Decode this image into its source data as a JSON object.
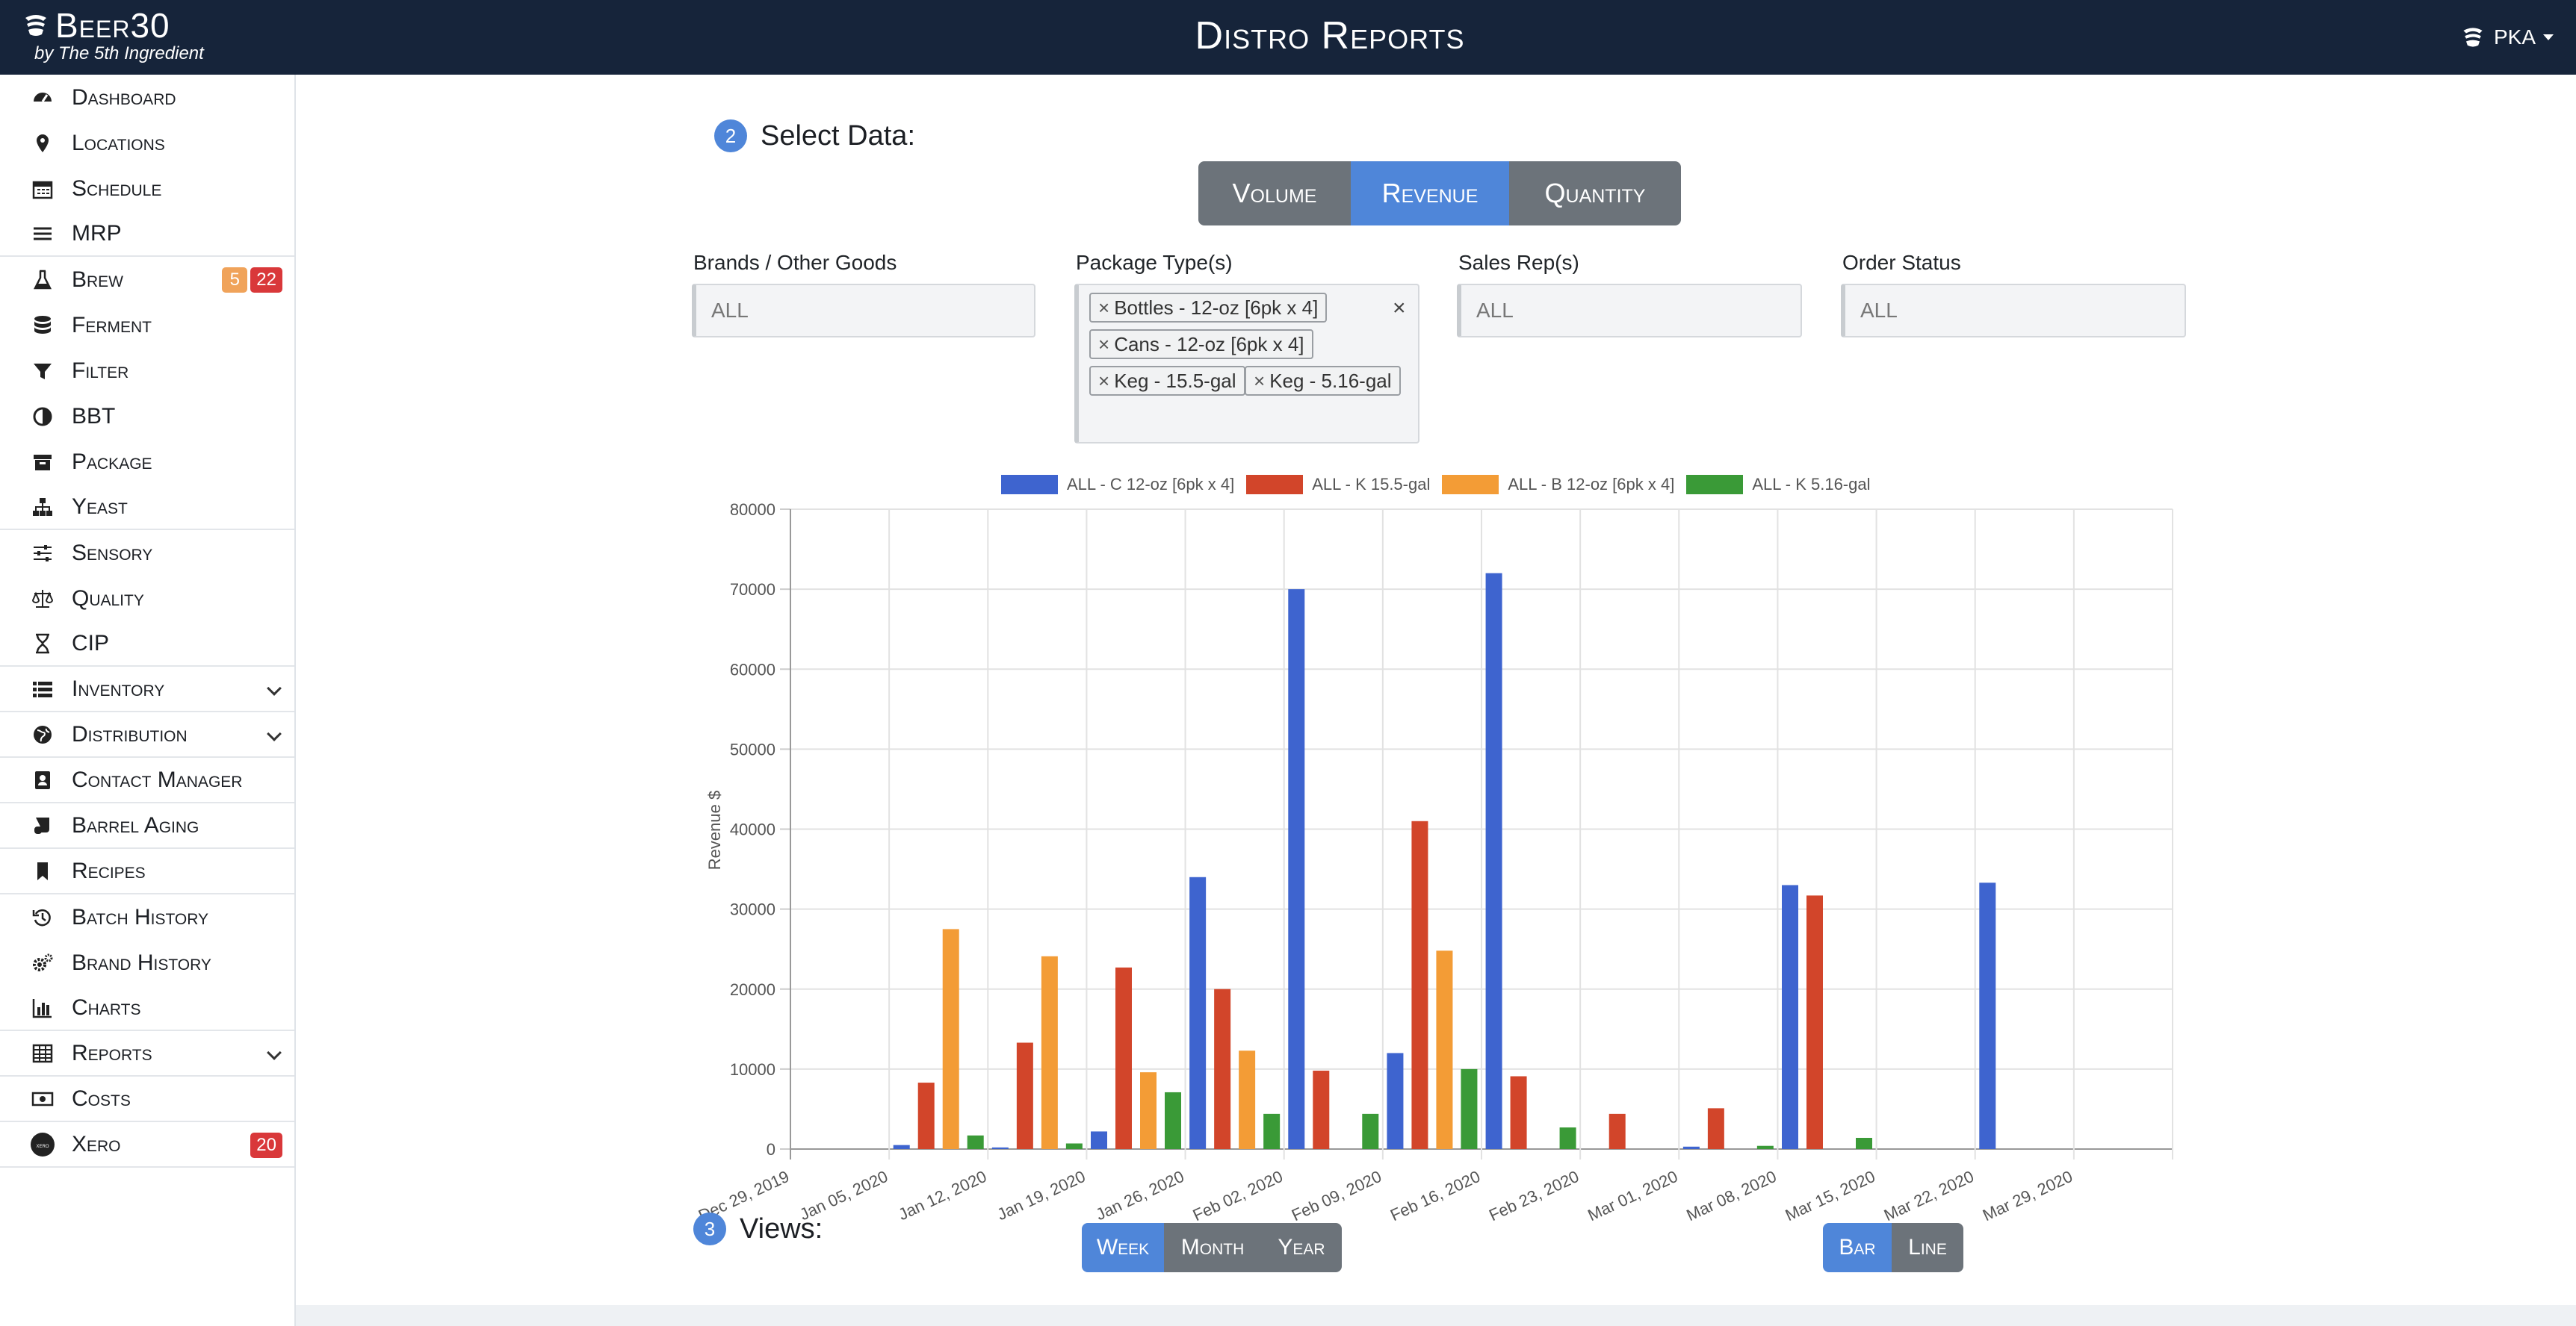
{
  "app": {
    "name": "Beer30",
    "subtitle": "by The 5th Ingredient",
    "page_title": "Distro Reports",
    "user": "PKA"
  },
  "sidebar": {
    "items": [
      {
        "label": "Dashboard",
        "icon": "tachometer-icon"
      },
      {
        "label": "Locations",
        "icon": "map-pin-icon"
      },
      {
        "label": "Schedule",
        "icon": "calendar-icon"
      },
      {
        "label": "MRP",
        "icon": "bars-icon"
      },
      {
        "label": "Brew",
        "icon": "flask-icon",
        "badges": [
          "5",
          "22"
        ]
      },
      {
        "label": "Ferment",
        "icon": "database-icon"
      },
      {
        "label": "Filter",
        "icon": "filter-icon"
      },
      {
        "label": "BBT",
        "icon": "half-circle-icon"
      },
      {
        "label": "Package",
        "icon": "archive-icon"
      },
      {
        "label": "Yeast",
        "icon": "sitemap-icon"
      },
      {
        "label": "Sensory",
        "icon": "sliders-icon"
      },
      {
        "label": "Quality",
        "icon": "balance-scale-icon"
      },
      {
        "label": "CIP",
        "icon": "hourglass-icon"
      },
      {
        "label": "Inventory",
        "icon": "list-icon",
        "expandable": true
      },
      {
        "label": "Distribution",
        "icon": "globe-icon",
        "expandable": true
      },
      {
        "label": "Contact Manager",
        "icon": "address-book-icon"
      },
      {
        "label": "Barrel Aging",
        "icon": "scroll-icon"
      },
      {
        "label": "Recipes",
        "icon": "bookmark-icon"
      },
      {
        "label": "Batch History",
        "icon": "history-icon"
      },
      {
        "label": "Brand History",
        "icon": "cogs-icon"
      },
      {
        "label": "Charts",
        "icon": "bar-chart-icon"
      },
      {
        "label": "Reports",
        "icon": "table-icon",
        "expandable": true
      },
      {
        "label": "Costs",
        "icon": "money-bill-icon"
      },
      {
        "label": "Xero",
        "icon": "xero-logo-icon",
        "badges": [
          "20"
        ]
      }
    ]
  },
  "select_data": {
    "step": "2",
    "title": "Select Data:",
    "data_buttons": [
      "Volume",
      "Revenue",
      "Quantity"
    ],
    "active": "Revenue",
    "filters": {
      "brands": {
        "label": "Brands / Other Goods",
        "value": "ALL"
      },
      "package_types": {
        "label": "Package Type(s)",
        "tags": [
          "Bottles - 12-oz [6pk x 4]",
          "Cans - 12-oz [6pk x 4]",
          "Keg - 15.5-gal",
          "Keg - 5.16-gal"
        ]
      },
      "sales_reps": {
        "label": "Sales Rep(s)",
        "value": "ALL"
      },
      "order_status": {
        "label": "Order Status",
        "value": "ALL"
      }
    }
  },
  "views": {
    "step": "3",
    "title": "Views:",
    "period_buttons": [
      "Week",
      "Month",
      "Year"
    ],
    "period_active": "Week",
    "type_buttons": [
      "Bar",
      "Line"
    ],
    "type_active": "Bar"
  },
  "chart_data": {
    "type": "bar",
    "ylabel": "Revenue $",
    "xlabel": "",
    "ylim": [
      0,
      80000
    ],
    "yticks": [
      "0",
      "10000",
      "20000",
      "30000",
      "40000",
      "50000",
      "60000",
      "70000",
      "80000"
    ],
    "grid": true,
    "legend_position": "top",
    "categories": [
      "Dec 29, 2019",
      "Jan 05, 2020",
      "Jan 12, 2020",
      "Jan 19, 2020",
      "Jan 26, 2020",
      "Feb 02, 2020",
      "Feb 09, 2020",
      "Feb 16, 2020",
      "Feb 23, 2020",
      "Mar 01, 2020",
      "Mar 08, 2020",
      "Mar 15, 2020",
      "Mar 22, 2020",
      "Mar 29, 2020"
    ],
    "series": [
      {
        "name": "ALL - C 12-oz [6pk x 4]",
        "color": "#3e64cf",
        "values": [
          0,
          500,
          200,
          2200,
          34000,
          70000,
          12000,
          72000,
          0,
          300,
          33000,
          0,
          33300,
          0
        ]
      },
      {
        "name": "ALL - K 15.5-gal",
        "color": "#d2452a",
        "values": [
          0,
          8300,
          13300,
          22700,
          20000,
          9800,
          41000,
          9100,
          4400,
          5100,
          31700,
          0,
          0,
          0
        ]
      },
      {
        "name": "ALL - B 12-oz [6pk x 4]",
        "color": "#f39c36",
        "values": [
          0,
          27500,
          24100,
          9600,
          12300,
          0,
          24800,
          0,
          0,
          0,
          0,
          0,
          0,
          0
        ]
      },
      {
        "name": "ALL - K 5.16-gal",
        "color": "#3a9a37",
        "values": [
          0,
          1700,
          700,
          7100,
          4400,
          4400,
          10000,
          2700,
          0,
          400,
          1400,
          0,
          0,
          0
        ]
      }
    ]
  }
}
